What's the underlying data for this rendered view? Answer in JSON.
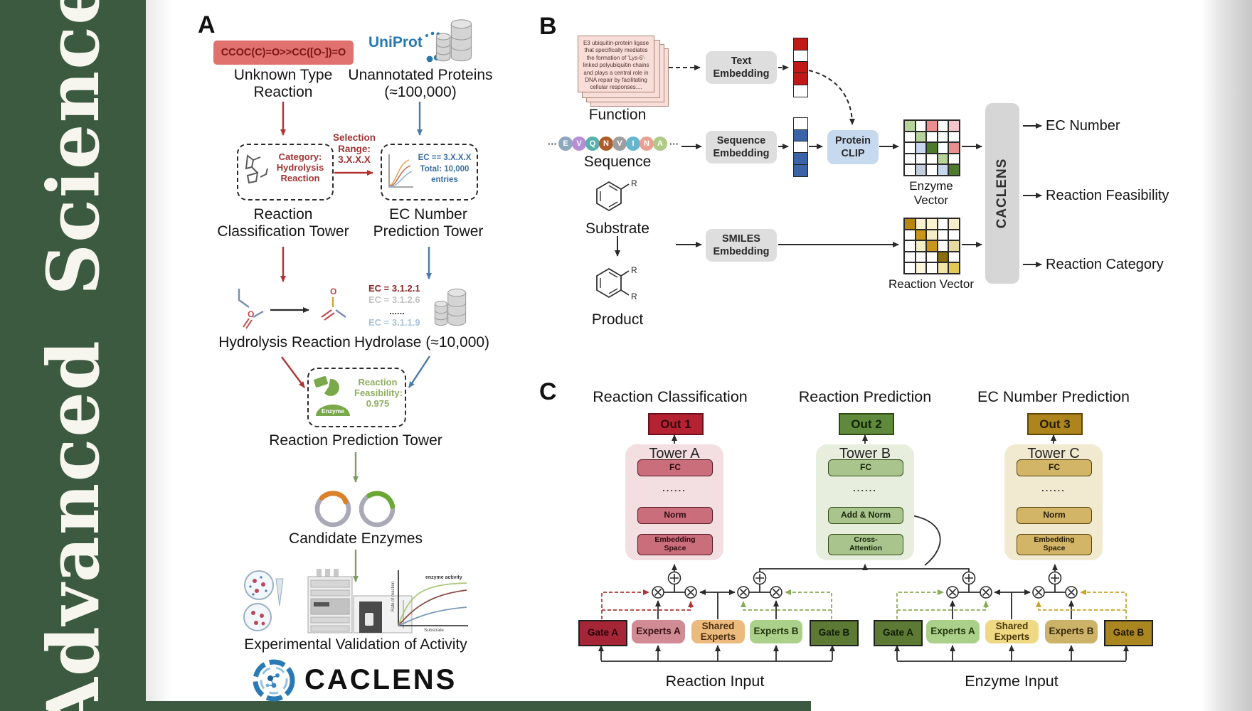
{
  "banner": {
    "word1": "Advanced",
    "word2": "Science"
  },
  "colors": {
    "banner_green": "#3b5a40",
    "red_accent": "#b03434",
    "blue_accent": "#4a7aab",
    "olive_arrow": "#7f9d63",
    "uniprot_blue": "#2878b0",
    "smiles_bg": "#e0716e",
    "gray_box": "#dedede",
    "clip_blue": "#c7d9ef",
    "caclens_bar": "#d6d6d6",
    "out1": "#b52333",
    "out2": "#5f8a3c",
    "out3": "#ad851c",
    "gate_red_line": "#b03434",
    "gate_green_line": "#8aab55",
    "gate_gold_line": "#c9a227"
  },
  "panelA": {
    "label": "A",
    "smiles": "CCOC(C)=O>>CC([O-])=O",
    "unknown_reaction": "Unknown Type Reaction",
    "uniprot": "UniProt",
    "unannotated": "Unannotated Proteins (≈100,000)",
    "category": "Category: Hydrolysis Reaction",
    "selection": "Selection Range: 3.X.X.X",
    "ec_filter_line1": "EC == 3.X.X.X",
    "ec_filter_line2": "Total: 10,000",
    "ec_filter_line3": "entries",
    "tower1": "Reaction Classification Tower",
    "tower2": "EC Number Prediction Tower",
    "ec_list": [
      {
        "text": "EC = 3.1.2.1",
        "color": "#8b2424"
      },
      {
        "text": "EC = 3.1.2.6",
        "color": "#c2c2c2"
      },
      {
        "text": "......",
        "color": "#3a3a3a"
      },
      {
        "text": "EC = 3.1.1.9",
        "color": "#a9c4dd"
      }
    ],
    "hydrolysis": "Hydrolysis Reaction",
    "hydrolase": "Hydrolase (≈10,000)",
    "enzyme": "Enzyme",
    "feasibility": "Reaction Feasibility: 0.975",
    "tower3": "Reaction Prediction Tower",
    "candidates": "Candidate Enzymes",
    "plot": {
      "annotation": "enzyme activity",
      "ylabel": "Rate of reaction",
      "xlabel": "Substrate"
    },
    "validation": "Experimental Validation of Activity",
    "brand": "CACLENS"
  },
  "panelB": {
    "label": "B",
    "function_card": "E3 ubiquitin-protein ligase that specifically mediates the formation of 'Lys-6'-linked polyubiquitin chains and plays a central role in DNA repair by facilitating cellular responses....",
    "function": "Function",
    "ellipsis": "···",
    "residues": [
      {
        "t": "E",
        "c": "#8da7bf"
      },
      {
        "t": "V",
        "c": "#b48fd8"
      },
      {
        "t": "Q",
        "c": "#57b0ad"
      },
      {
        "t": "N",
        "c": "#b05c2a"
      },
      {
        "t": "V",
        "c": "#9e9e9e"
      },
      {
        "t": "I",
        "c": "#66b6cf"
      },
      {
        "t": "N",
        "c": "#e9a092"
      },
      {
        "t": "A",
        "c": "#aeca87"
      }
    ],
    "sequence": "Sequence",
    "substrate": "Substrate",
    "product": "Product",
    "r_label": "R",
    "text_embedding": "Text Embedding",
    "sequence_embedding": "Sequence Embedding",
    "smiles_embedding": "SMILES Embedding",
    "protein_clip": "Protein CLIP",
    "text_vector": [
      "#c21717",
      "#ffffff",
      "#c21717",
      "#c21717",
      "#ffffff"
    ],
    "seq_vector": [
      "#ffffff",
      "#3b63a8",
      "#ffffff",
      "#3b63a8",
      "#3b63a8"
    ],
    "enzyme_matrix": [
      [
        "#b6d39a",
        "#ffffff",
        "#e98f8f",
        "#ffffff",
        "#f3c6cb"
      ],
      [
        "#ffffff",
        "#b6d39a",
        "#ffffff",
        "#ffffff",
        "#ffffff"
      ],
      [
        "#ffffff",
        "#c7d8ee",
        "#4f7a2e",
        "#ffffff",
        "#e98f8f"
      ],
      [
        "#ffffff",
        "#ffffff",
        "#ffffff",
        "#b6d39a",
        "#ffffff"
      ],
      [
        "#ffffff",
        "#c3cfdd",
        "#ffffff",
        "#c7d8ee",
        "#4f7a2e"
      ]
    ],
    "reaction_matrix": [
      [
        "#b8860b",
        "#f7f0d2",
        "#faf3cd",
        "#ffffff",
        "#f5ecc8"
      ],
      [
        "#ffffff",
        "#c9961d",
        "#f5ecc8",
        "#ffffff",
        "#ffffff"
      ],
      [
        "#ffffff",
        "#f5ecc8",
        "#c9961d",
        "#ffffff",
        "#e8d9a0"
      ],
      [
        "#ffffff",
        "#ffffff",
        "#ffffff",
        "#8a6d0b",
        "#ffffff"
      ],
      [
        "#ffffff",
        "#faf5dc",
        "#ffffff",
        "#f0e4a8",
        "#e3c94f"
      ]
    ],
    "enzyme_vector_label": "Enzyme Vector",
    "reaction_vector_label": "Reaction Vector",
    "caclens": "CACLENS",
    "outputs": [
      "EC Number",
      "Reaction Feasibility",
      "Reaction Category"
    ]
  },
  "panelC": {
    "label": "C",
    "columns": [
      {
        "title": "Reaction Classification",
        "out": "Out 1",
        "tower": "Tower A",
        "layers": [
          "FC",
          "......",
          "Norm",
          "Embedding\nSpace"
        ]
      },
      {
        "title": "Reaction Prediction",
        "out": "Out 2",
        "tower": "Tower B",
        "layers": [
          "FC",
          "......",
          "Add & Norm",
          "Cross-\nAttention"
        ]
      },
      {
        "title": "EC Number Prediction",
        "out": "Out 3",
        "tower": "Tower C",
        "layers": [
          "FC",
          "......",
          "Norm",
          "Embedding\nSpace"
        ]
      }
    ],
    "reaction_bank": [
      {
        "label": "Gate A",
        "bg": "#a62638",
        "fg": "#260509"
      },
      {
        "label": "Experts A",
        "bg": "#d08b95",
        "fg": "#3a1216"
      },
      {
        "label": "Shared Experts",
        "bg": "#ecba7c",
        "fg": "#4a2e10"
      },
      {
        "label": "Experts B",
        "bg": "#abd08a",
        "fg": "#23350f"
      },
      {
        "label": "Gate B",
        "bg": "#5c7a34",
        "fg": "#101a05"
      }
    ],
    "enzyme_bank": [
      {
        "label": "Gate A",
        "bg": "#5c7a34",
        "fg": "#101a05"
      },
      {
        "label": "Experts A",
        "bg": "#abd08a",
        "fg": "#23350f"
      },
      {
        "label": "Shared Experts",
        "bg": "#f0d984",
        "fg": "#4a3a0a"
      },
      {
        "label": "Experts B",
        "bg": "#cdb36a",
        "fg": "#352a08"
      },
      {
        "label": "Gate B",
        "bg": "#a9861f",
        "fg": "#1f1703"
      }
    ],
    "reaction_input": "Reaction Input",
    "enzyme_input": "Enzyme Input"
  }
}
